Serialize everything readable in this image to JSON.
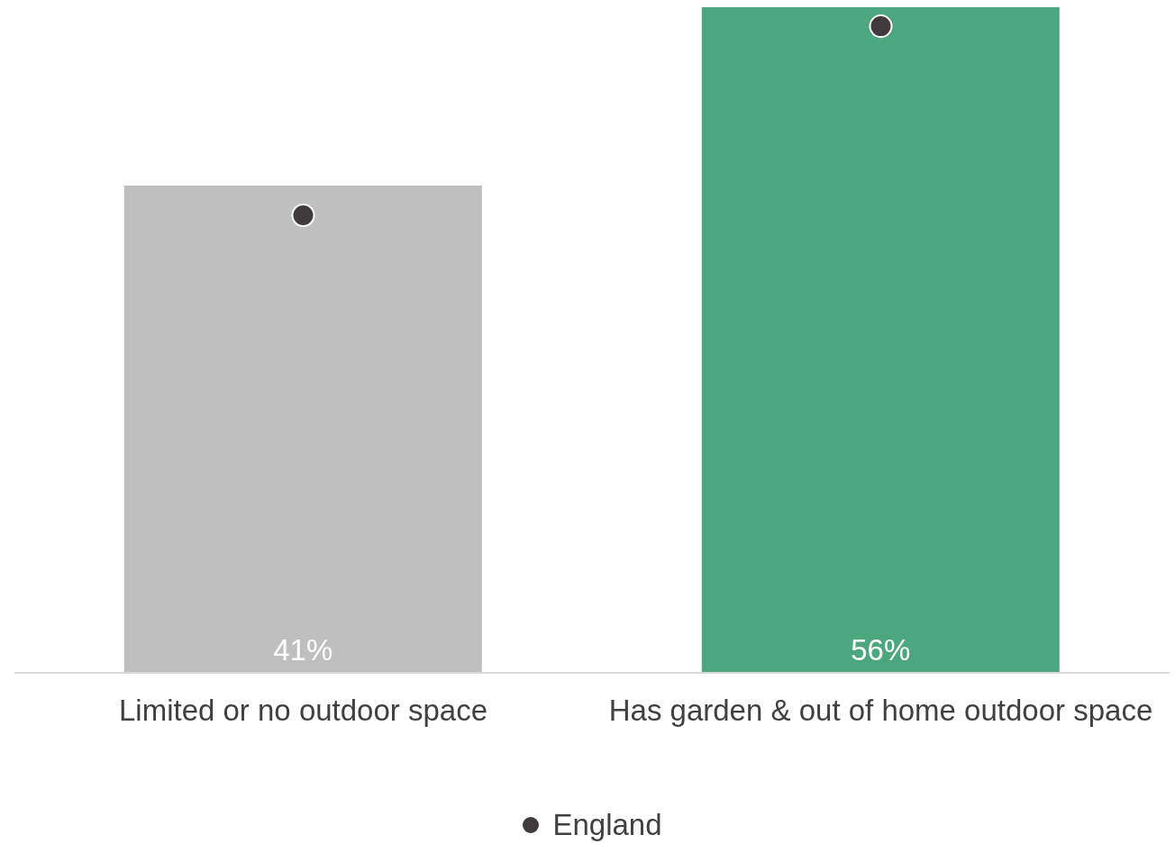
{
  "chart_data": {
    "type": "bar",
    "categories": [
      "Limited or no outdoor space",
      "Has garden & out of home outdoor space"
    ],
    "series": [
      {
        "type": "bar",
        "colors": [
          "#bfbfbf",
          "#4ca77f"
        ],
        "values": [
          41,
          56
        ],
        "value_labels": [
          "41%",
          "56%"
        ]
      },
      {
        "type": "scatter",
        "name": "England",
        "color": "#403a3c",
        "x": [
          "Limited or no outdoor space",
          "Has garden & out of home outdoor space"
        ],
        "values": [
          38.5,
          54.4
        ]
      }
    ],
    "legend": "bottom",
    "marker": "circle"
  }
}
